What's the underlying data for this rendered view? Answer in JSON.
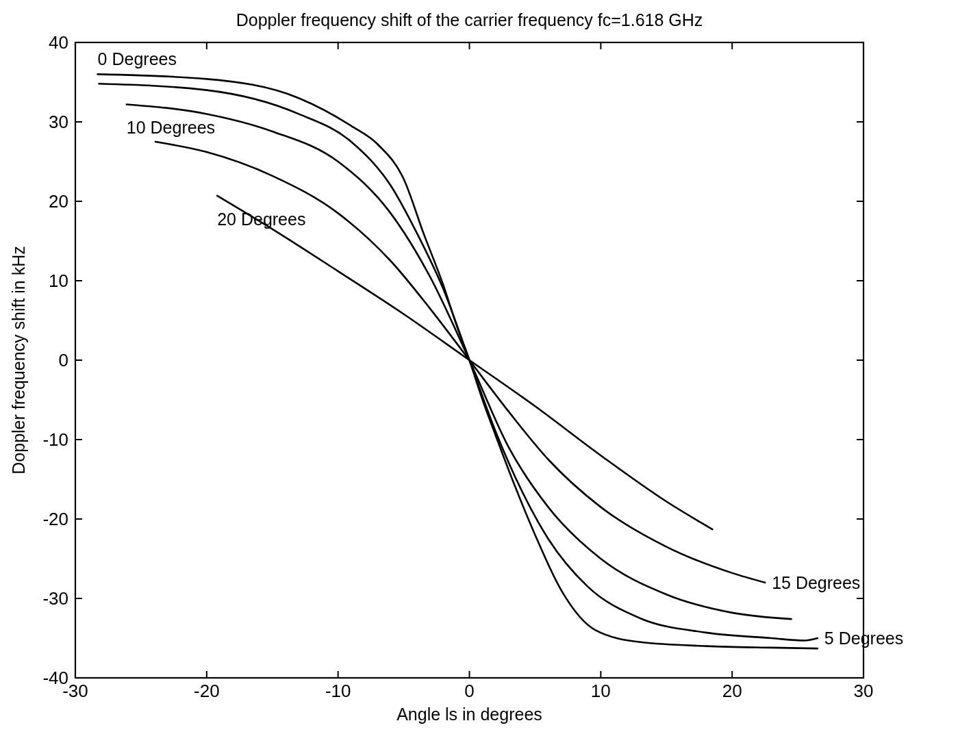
{
  "chart_data": {
    "type": "line",
    "title": "Doppler frequency shift of the carrier frequency fc=1.618 GHz",
    "xlabel": "Angle ls in degrees",
    "ylabel": "Doppler frequency shift in kHz",
    "xlim": [
      -30,
      30
    ],
    "xticks": [
      -30,
      -20,
      -10,
      0,
      10,
      20,
      30
    ],
    "ylim": [
      -40,
      40
    ],
    "yticks": [
      -40,
      -30,
      -20,
      -10,
      0,
      10,
      20,
      30,
      40
    ],
    "grid": false,
    "marker": "none",
    "line_style": "solid",
    "series": [
      {
        "name": "0 Degrees",
        "color": "#000000",
        "x": [
          -28.3,
          -20,
          -13,
          -9,
          -7,
          -5,
          -3.5,
          -2,
          -1,
          0,
          1,
          2,
          3.5,
          5,
          7,
          9.6,
          13,
          18,
          23,
          26.5
        ],
        "values": [
          36.0,
          35.4,
          33.0,
          29.5,
          27.2,
          22.8,
          16,
          9.5,
          4.5,
          0,
          -5,
          -9.5,
          -16,
          -22,
          -29,
          -34,
          -35.5,
          -36.0,
          -36.2,
          -36.3
        ]
      },
      {
        "name": "5 Degrees",
        "color": "#000000",
        "x": [
          -28.2,
          -20,
          -13,
          -9,
          -6,
          -4,
          -2,
          0,
          2,
          4,
          6,
          9,
          13,
          18,
          23,
          25.5,
          26.5
        ],
        "values": [
          34.8,
          34.0,
          31,
          27.5,
          22,
          16,
          9,
          0,
          -9,
          -16.5,
          -22.5,
          -28.5,
          -32.5,
          -34.3,
          -35.0,
          -35.3,
          -35.0
        ]
      },
      {
        "name": "10 Degrees",
        "color": "#000000",
        "x": [
          -26.1,
          -20,
          -15,
          -10,
          -6,
          -3,
          0,
          3,
          6,
          10,
          15,
          20,
          24.5
        ],
        "values": [
          32.2,
          31,
          28.8,
          25,
          18.5,
          10.5,
          0,
          -11,
          -18.5,
          -25,
          -29.5,
          -31.8,
          -32.6
        ]
      },
      {
        "name": "15 Degrees",
        "color": "#000000",
        "x": [
          -23.9,
          -20,
          -15,
          -10,
          -6,
          -3,
          0,
          3,
          6,
          10,
          15,
          20,
          22.5
        ],
        "values": [
          27.5,
          26.2,
          23.2,
          18.5,
          12.5,
          6.5,
          0,
          -6.5,
          -12.5,
          -18.5,
          -23.5,
          -26.8,
          -28.0
        ]
      },
      {
        "name": "20 Degrees",
        "color": "#000000",
        "x": [
          -19.2,
          -15,
          -10,
          -5,
          0,
          5,
          10,
          15,
          18.5
        ],
        "values": [
          20.7,
          16.5,
          11.2,
          5.8,
          0,
          -5.8,
          -12,
          -17.8,
          -21.3
        ]
      }
    ]
  }
}
